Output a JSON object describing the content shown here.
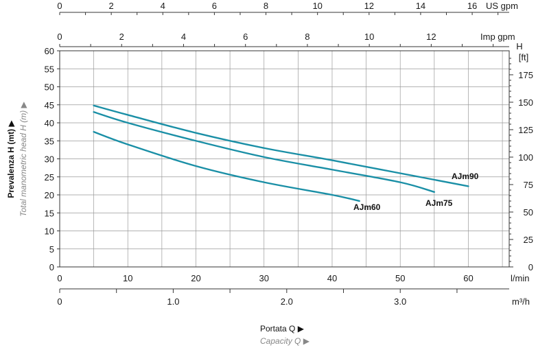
{
  "chart_data": {
    "type": "line",
    "title": "",
    "colors": {
      "curve": "#1a8fa6",
      "grid": "#999999",
      "axis": "#333333"
    },
    "x": {
      "label": "l/min",
      "range": [
        0,
        66
      ],
      "ticks": [
        0,
        10,
        20,
        30,
        40,
        50,
        60
      ]
    },
    "y": {
      "label": "",
      "range": [
        0,
        60
      ],
      "ticks": [
        0,
        5,
        10,
        15,
        20,
        25,
        30,
        35,
        40,
        45,
        50,
        55,
        60
      ]
    },
    "y_right": {
      "label_top": "H",
      "label": "[ft]",
      "range_ft": [
        0,
        196.85
      ],
      "ticks": [
        0,
        25,
        50,
        75,
        100,
        125,
        150,
        175
      ]
    },
    "x_top_us": {
      "label": "US gpm",
      "ticks": [
        0,
        2,
        4,
        6,
        8,
        10,
        12,
        14,
        16
      ],
      "lpm_per_unit": 3.7854
    },
    "x_top_imp": {
      "label": "Imp gpm",
      "ticks": [
        0,
        2,
        4,
        6,
        8,
        10,
        12
      ],
      "lpm_per_unit": 4.546
    },
    "x_bottom_m3h": {
      "label": "m³/h",
      "ticks": [
        0,
        1.0,
        2.0,
        3.0
      ],
      "tick_labels": [
        "0",
        "1.0",
        "2.0",
        "3.0"
      ],
      "lpm_per_unit": 16.667
    },
    "y_title": "Prevalenza H (mt) ▶",
    "y_title_sub": "Total manometric head H (m) ▶",
    "x_title": "Portata Q ▶",
    "x_title_sub": "Capacity Q ▶",
    "grid": true,
    "series": [
      {
        "name": "AJm90",
        "points": [
          [
            5,
            44.8
          ],
          [
            10,
            42.2
          ],
          [
            20,
            37.2
          ],
          [
            30,
            33.0
          ],
          [
            40,
            29.6
          ],
          [
            50,
            26.0
          ],
          [
            60,
            22.4
          ]
        ]
      },
      {
        "name": "AJm75",
        "points": [
          [
            5,
            43.0
          ],
          [
            10,
            40.0
          ],
          [
            20,
            35.0
          ],
          [
            30,
            30.5
          ],
          [
            40,
            27.0
          ],
          [
            50,
            23.5
          ],
          [
            55,
            20.8
          ]
        ]
      },
      {
        "name": "AJm60",
        "points": [
          [
            5,
            37.5
          ],
          [
            10,
            34.0
          ],
          [
            20,
            28.0
          ],
          [
            30,
            23.5
          ],
          [
            40,
            20.0
          ],
          [
            44,
            18.3
          ]
        ]
      }
    ]
  }
}
